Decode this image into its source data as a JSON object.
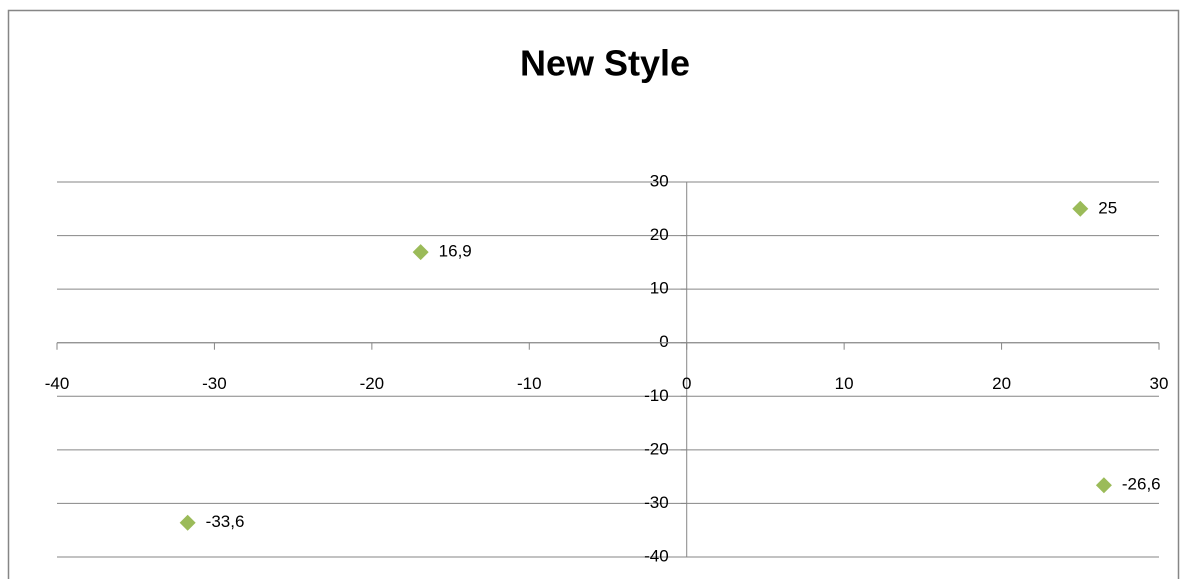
{
  "chart_data": {
    "type": "scatter",
    "title": "New Style",
    "x": [
      25,
      -16.9,
      -31.7,
      26.5
    ],
    "values": [
      25,
      16.9,
      -33.6,
      -26.6
    ],
    "value_labels": [
      "25",
      "16,9",
      "-33,6",
      "-26,6"
    ],
    "color": "#9bbb59",
    "xlim": [
      -40,
      30
    ],
    "xticks": [
      -40,
      -30,
      -20,
      -10,
      0,
      10,
      20,
      30
    ],
    "ylim": [
      -40,
      30
    ],
    "yticks": [
      -40,
      -30,
      -20,
      -10,
      0,
      10,
      20,
      30
    ],
    "grid": true
  }
}
